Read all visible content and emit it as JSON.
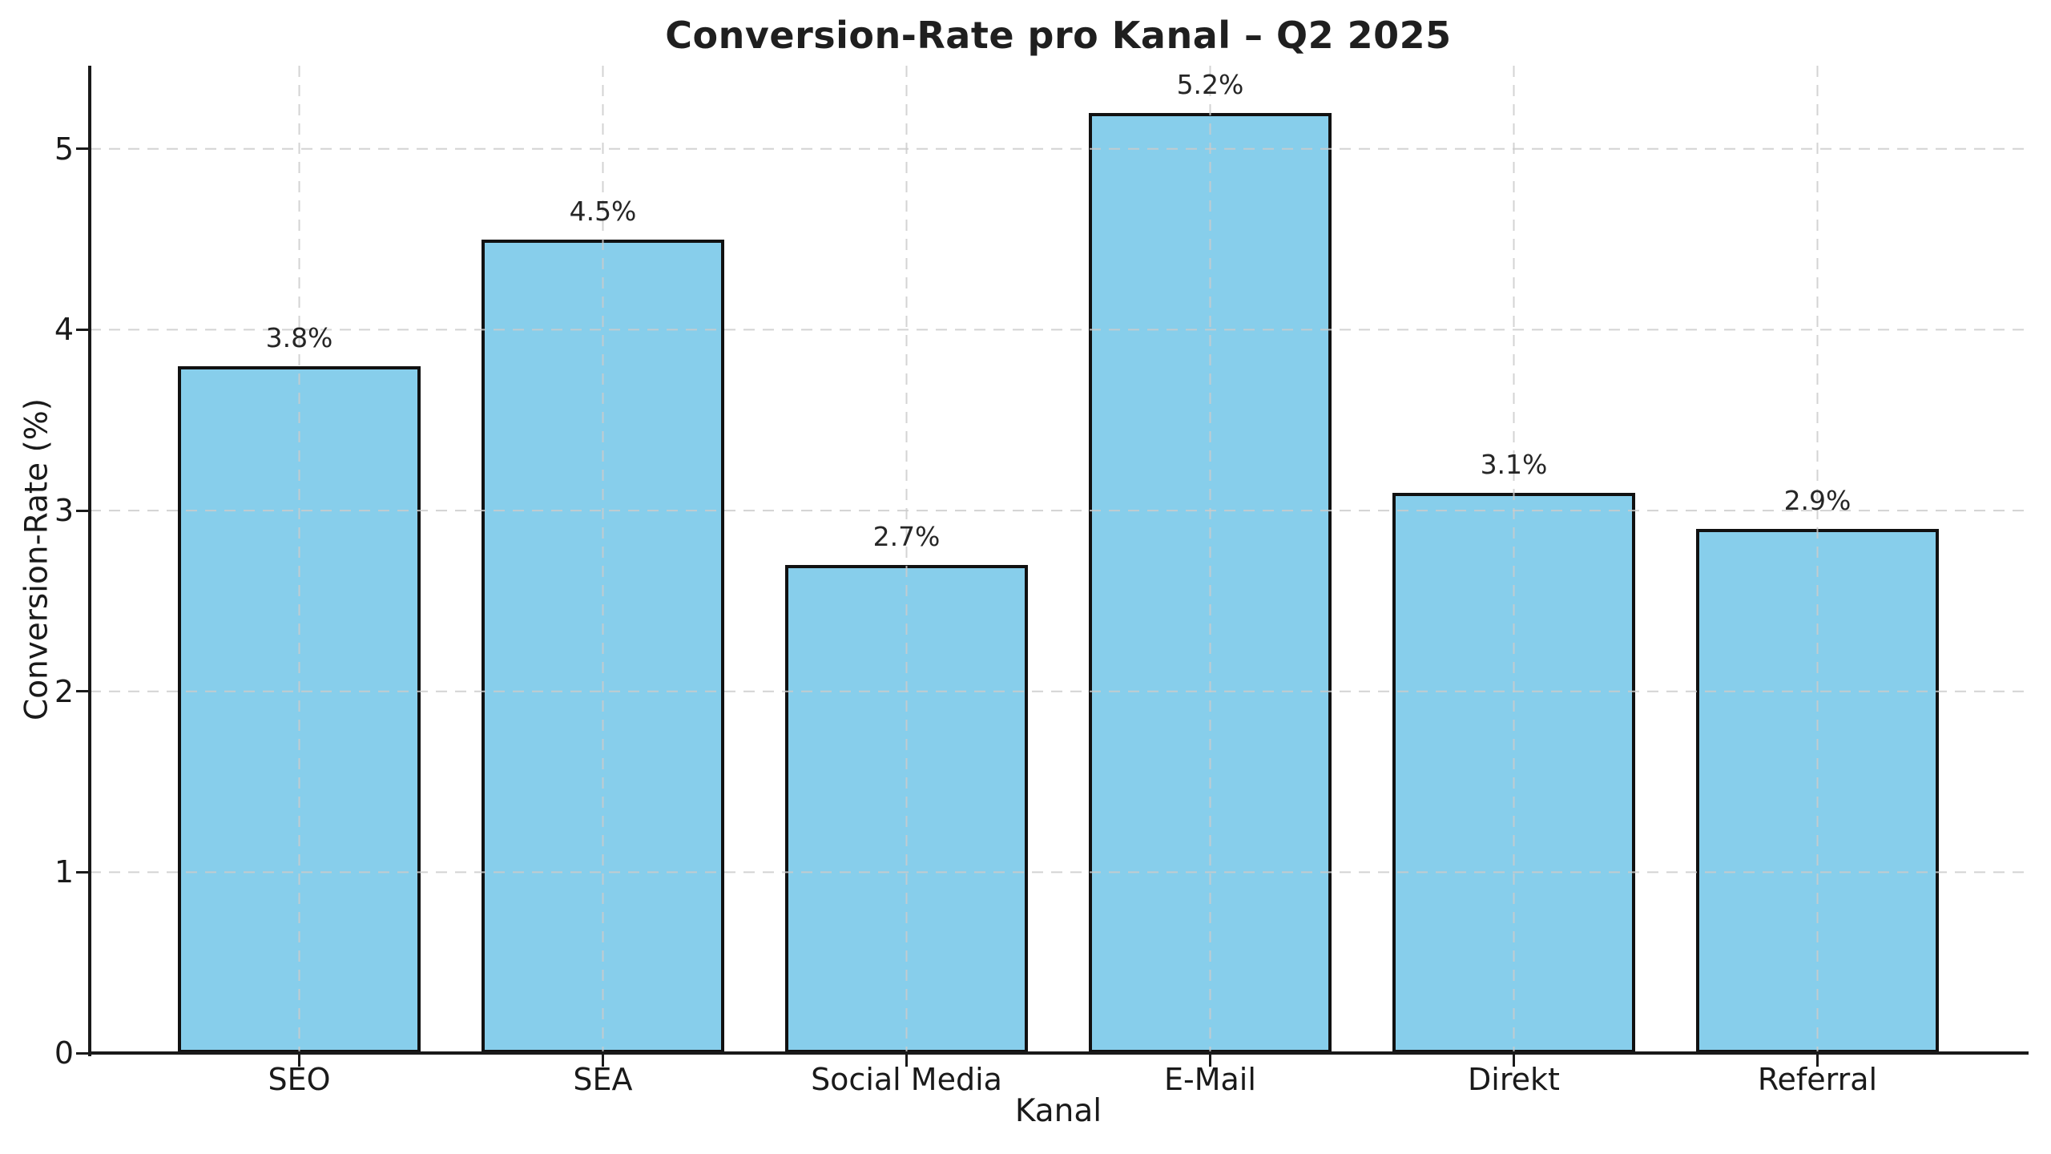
{
  "chart_data": {
    "type": "bar",
    "title": "Conversion-Rate pro Kanal – Q2 2025",
    "xlabel": "Kanal",
    "ylabel": "Conversion-Rate (%)",
    "categories": [
      "SEO",
      "SEA",
      "Social Media",
      "E-Mail",
      "Direkt",
      "Referral"
    ],
    "values": [
      3.8,
      4.5,
      2.7,
      5.2,
      3.1,
      2.9
    ],
    "value_labels": [
      "3.8%",
      "4.5%",
      "2.7%",
      "5.2%",
      "3.1%",
      "2.9%"
    ],
    "ylim": [
      0,
      5.46
    ],
    "yticks": [
      0,
      1,
      2,
      3,
      4,
      5
    ],
    "grid": "dashed, both axes, drawn over bars",
    "legend": "none",
    "colors": {
      "bar_fill": "#87CEEB",
      "bar_edge": "#111111",
      "grid_line": "#cccccc",
      "axis_line": "#1a1a1a",
      "text": "#1a1a1a",
      "background": "#ffffff"
    }
  }
}
